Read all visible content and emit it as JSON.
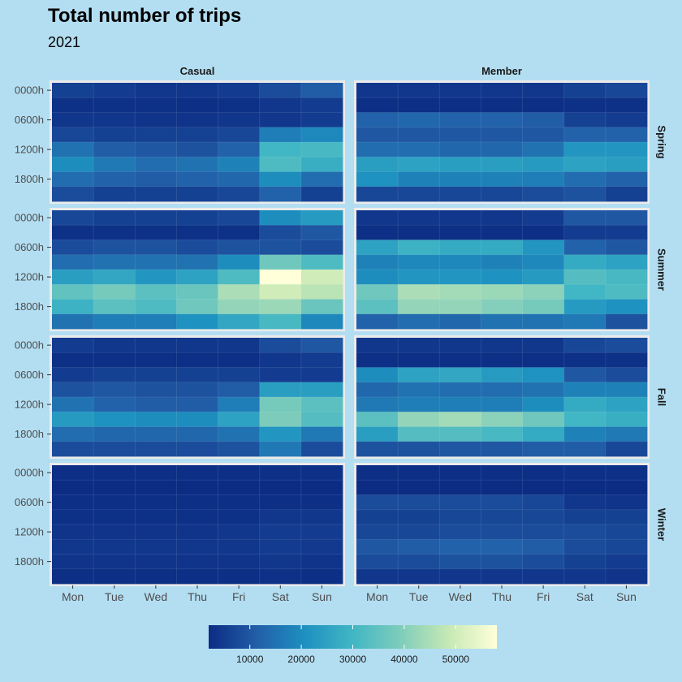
{
  "chart_data": {
    "type": "heatmap",
    "title": "Total number of trips",
    "subtitle": "2021",
    "columns": [
      "Casual",
      "Member"
    ],
    "rows": [
      "Spring",
      "Summer",
      "Fall",
      "Winter"
    ],
    "x_categories": [
      "Mon",
      "Tue",
      "Wed",
      "Thu",
      "Fri",
      "Sat",
      "Sun"
    ],
    "y_tick_labels": [
      "0000h",
      "0600h",
      "1200h",
      "1800h"
    ],
    "y_bins": [
      "0000h",
      "0300h",
      "0600h",
      "0900h",
      "1200h",
      "1500h",
      "1800h",
      "2100h"
    ],
    "legend": {
      "position": "bottom",
      "range": [
        2000,
        58000
      ],
      "breaks": [
        10000,
        20000,
        30000,
        40000,
        50000
      ],
      "break_labels": [
        "10000",
        "20000",
        "30000",
        "40000",
        "50000"
      ],
      "colors": [
        "#0c2c84",
        "#225ea8",
        "#1d91c0",
        "#41b6c4",
        "#7fcdbb",
        "#c7e9b4",
        "#ffffd9"
      ]
    },
    "panels": [
      {
        "column": "Casual",
        "row": "Spring",
        "values": [
          [
            6000,
            5000,
            4000,
            4000,
            5000,
            8000,
            11000
          ],
          [
            3000,
            3000,
            3000,
            2500,
            3000,
            4000,
            5000
          ],
          [
            4000,
            4000,
            3500,
            3500,
            4000,
            4000,
            5000
          ],
          [
            7000,
            6000,
            6000,
            6000,
            7000,
            17000,
            19000
          ],
          [
            15000,
            11000,
            10000,
            9000,
            12000,
            30000,
            31000
          ],
          [
            20000,
            16000,
            14000,
            15000,
            18000,
            32000,
            28000
          ],
          [
            14000,
            12000,
            11000,
            12000,
            13000,
            20000,
            14000
          ],
          [
            8000,
            6000,
            6000,
            6000,
            7000,
            12000,
            6000
          ]
        ]
      },
      {
        "column": "Member",
        "row": "Spring",
        "values": [
          [
            4000,
            4000,
            4000,
            4000,
            4000,
            6000,
            7000
          ],
          [
            2500,
            2500,
            2500,
            2500,
            2500,
            3000,
            3000
          ],
          [
            12000,
            13000,
            12000,
            12000,
            11000,
            6000,
            5000
          ],
          [
            10000,
            10000,
            10000,
            10000,
            10000,
            12000,
            12000
          ],
          [
            14000,
            14000,
            13000,
            13000,
            15000,
            22000,
            22000
          ],
          [
            24000,
            25000,
            24000,
            24000,
            23000,
            25000,
            24000
          ],
          [
            21000,
            18000,
            18000,
            18000,
            17000,
            14000,
            12000
          ],
          [
            7000,
            7000,
            7000,
            7000,
            8000,
            9000,
            6000
          ]
        ]
      },
      {
        "column": "Casual",
        "row": "Summer",
        "values": [
          [
            7000,
            6000,
            6000,
            6000,
            7000,
            20000,
            23000
          ],
          [
            3000,
            3000,
            3000,
            3000,
            3000,
            8000,
            10000
          ],
          [
            8000,
            9000,
            9000,
            8000,
            9000,
            9000,
            8000
          ],
          [
            14000,
            15000,
            15000,
            15000,
            20000,
            37000,
            32000
          ],
          [
            24000,
            26000,
            22000,
            25000,
            32000,
            58000,
            50000
          ],
          [
            35000,
            38000,
            34000,
            36000,
            45000,
            50000,
            47000
          ],
          [
            29000,
            34000,
            32000,
            37000,
            42000,
            43000,
            36000
          ],
          [
            15000,
            17000,
            17000,
            21000,
            26000,
            31000,
            19000
          ]
        ]
      },
      {
        "column": "Member",
        "row": "Summer",
        "values": [
          [
            4000,
            4000,
            4000,
            4000,
            5000,
            10000,
            10000
          ],
          [
            2500,
            2500,
            2500,
            2500,
            2500,
            5000,
            5000
          ],
          [
            25000,
            29000,
            27000,
            27000,
            22000,
            12000,
            10000
          ],
          [
            18000,
            19000,
            19000,
            18000,
            19000,
            27000,
            25000
          ],
          [
            20000,
            22000,
            22000,
            21000,
            23000,
            33000,
            31000
          ],
          [
            37000,
            45000,
            44000,
            43000,
            41000,
            30000,
            32000
          ],
          [
            34000,
            42000,
            42000,
            40000,
            38000,
            23000,
            21000
          ],
          [
            12000,
            14000,
            13000,
            15000,
            15000,
            16000,
            9000
          ]
        ]
      },
      {
        "column": "Casual",
        "row": "Fall",
        "values": [
          [
            5000,
            4000,
            4000,
            4000,
            4000,
            8000,
            10000
          ],
          [
            2500,
            2500,
            2500,
            2500,
            2500,
            4000,
            5000
          ],
          [
            5000,
            6000,
            6000,
            6000,
            6000,
            5000,
            5000
          ],
          [
            9000,
            10000,
            9000,
            9000,
            11000,
            24000,
            24000
          ],
          [
            15000,
            12000,
            11000,
            11000,
            17000,
            38000,
            34000
          ],
          [
            23000,
            21000,
            20000,
            20000,
            25000,
            39000,
            33000
          ],
          [
            14000,
            13000,
            13000,
            13000,
            15000,
            22000,
            16000
          ],
          [
            8000,
            8000,
            8000,
            8000,
            9000,
            16000,
            8000
          ]
        ]
      },
      {
        "column": "Member",
        "row": "Fall",
        "values": [
          [
            4000,
            4000,
            4000,
            4000,
            4000,
            7000,
            8000
          ],
          [
            2500,
            2500,
            2500,
            2500,
            2500,
            3000,
            3000
          ],
          [
            20000,
            25000,
            26000,
            23000,
            21000,
            10000,
            8000
          ],
          [
            13000,
            15000,
            14000,
            14000,
            15000,
            18000,
            18000
          ],
          [
            16000,
            17000,
            17000,
            17000,
            20000,
            27000,
            25000
          ],
          [
            34000,
            42000,
            44000,
            41000,
            37000,
            30000,
            28000
          ],
          [
            24000,
            33000,
            33000,
            31000,
            27000,
            18000,
            16000
          ],
          [
            9000,
            9000,
            10000,
            10000,
            11000,
            11000,
            7000
          ]
        ]
      },
      {
        "column": "Casual",
        "row": "Winter",
        "values": [
          [
            2500,
            2500,
            2500,
            2500,
            2500,
            3000,
            3000
          ],
          [
            2000,
            2000,
            2000,
            2000,
            2000,
            2000,
            2000
          ],
          [
            2500,
            2500,
            2500,
            2500,
            2500,
            2500,
            2500
          ],
          [
            3000,
            3000,
            3000,
            3000,
            3000,
            4000,
            4000
          ],
          [
            3500,
            3500,
            3500,
            3500,
            4000,
            5000,
            5000
          ],
          [
            4000,
            4000,
            4000,
            4000,
            4000,
            5000,
            4500
          ],
          [
            3500,
            3500,
            3500,
            3500,
            3500,
            4000,
            3500
          ],
          [
            2500,
            2500,
            2500,
            2500,
            2500,
            3000,
            2500
          ]
        ]
      },
      {
        "column": "Member",
        "row": "Winter",
        "values": [
          [
            2500,
            2500,
            2500,
            2500,
            2500,
            3000,
            3000
          ],
          [
            2000,
            2000,
            2000,
            2000,
            2000,
            2000,
            2000
          ],
          [
            8000,
            8000,
            8000,
            8000,
            7000,
            4000,
            3500
          ],
          [
            6000,
            6000,
            7000,
            7000,
            7000,
            6000,
            6000
          ],
          [
            7000,
            7000,
            8000,
            8000,
            8000,
            8000,
            7000
          ],
          [
            10000,
            11000,
            12000,
            12000,
            11000,
            8000,
            7000
          ],
          [
            8000,
            8000,
            9000,
            9000,
            8000,
            6000,
            5000
          ],
          [
            4000,
            4000,
            4000,
            4000,
            4000,
            4000,
            3500
          ]
        ]
      }
    ]
  }
}
